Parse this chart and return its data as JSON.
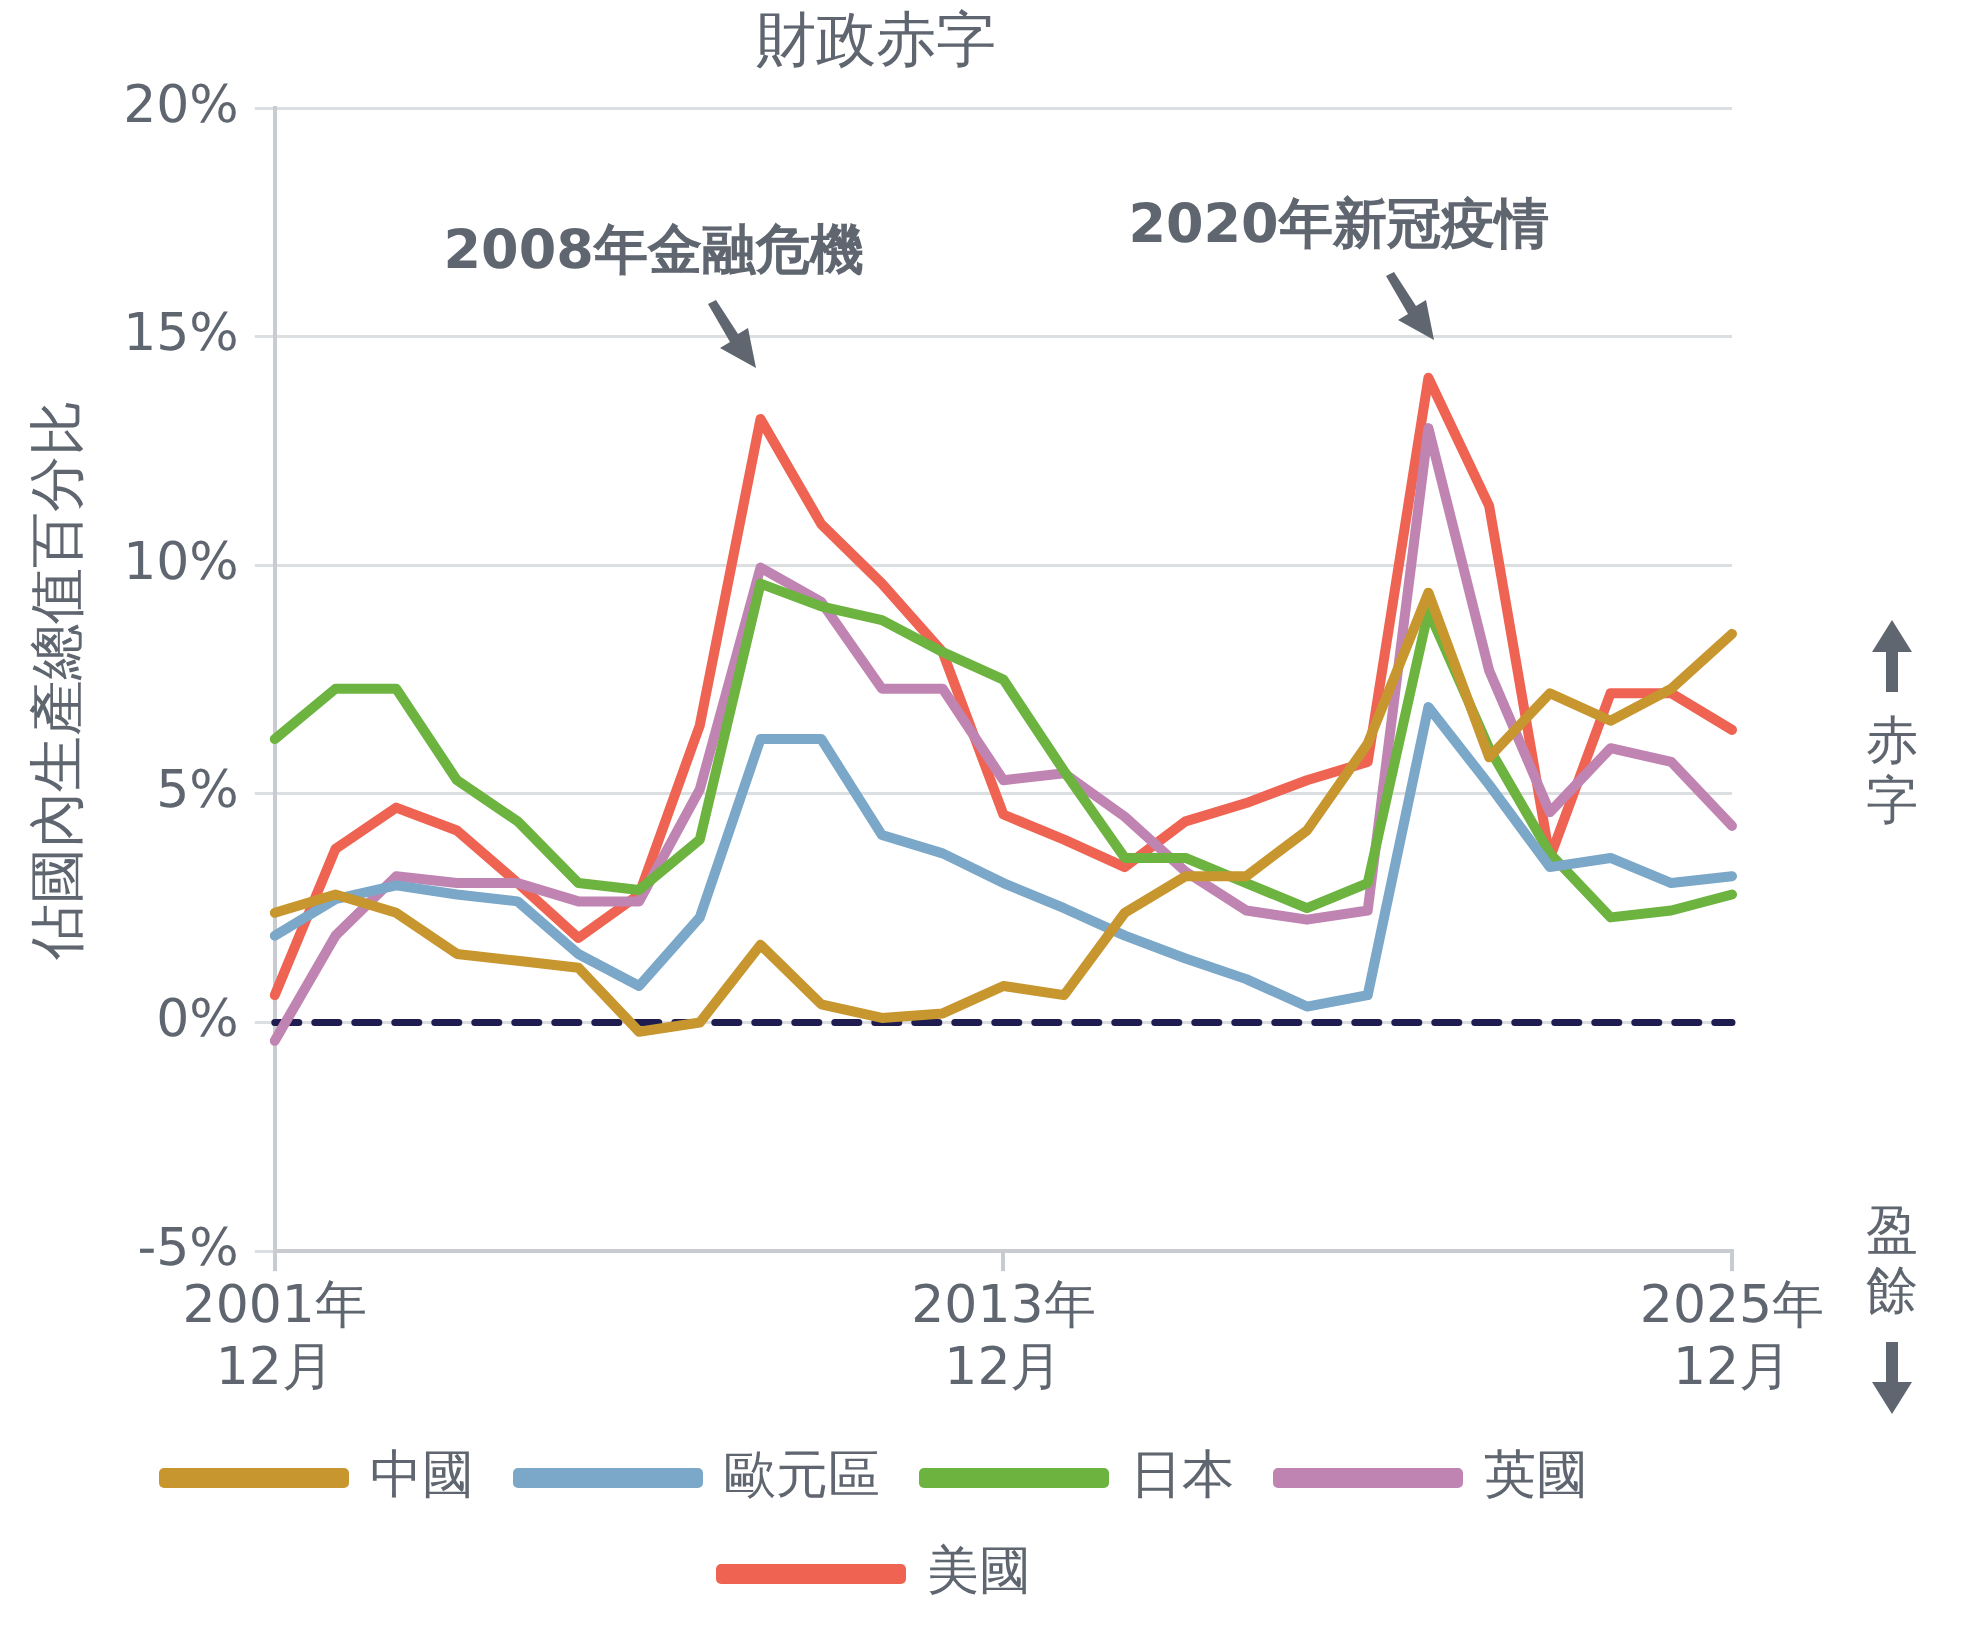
{
  "chart_data": {
    "type": "line",
    "title": "財政赤字",
    "ylabel": "佔國內生產總值百分比",
    "categories": [
      "2001年\n12月",
      null,
      null,
      null,
      null,
      null,
      null,
      null,
      null,
      null,
      null,
      null,
      "2013年\n12月",
      null,
      null,
      null,
      null,
      null,
      null,
      null,
      null,
      null,
      null,
      null,
      "2025年\n12月"
    ],
    "series": [
      {
        "name": "中國",
        "color": "#c8962e",
        "values": [
          2.4,
          2.8,
          2.4,
          1.5,
          1.35,
          1.2,
          -0.2,
          0.0,
          1.7,
          0.4,
          0.1,
          0.2,
          0.8,
          0.6,
          2.4,
          3.2,
          3.2,
          4.2,
          6.1,
          9.4,
          5.8,
          7.2,
          6.6,
          7.3,
          8.5
        ]
      },
      {
        "name": "歐元區",
        "color": "#7ba7c8",
        "values": [
          1.9,
          2.7,
          3.0,
          2.8,
          2.65,
          1.5,
          0.8,
          2.3,
          6.2,
          6.2,
          4.1,
          3.7,
          3.05,
          2.5,
          1.9,
          1.4,
          0.95,
          0.35,
          0.6,
          6.9,
          5.2,
          3.4,
          3.6,
          3.05,
          3.2
        ]
      },
      {
        "name": "日本",
        "color": "#6db33f",
        "values": [
          6.2,
          7.3,
          7.3,
          5.3,
          4.4,
          3.05,
          2.9,
          4.0,
          9.6,
          9.1,
          8.8,
          8.1,
          7.5,
          5.5,
          3.6,
          3.6,
          3.05,
          2.5,
          3.05,
          9.0,
          6.0,
          3.7,
          2.3,
          2.45,
          2.8
        ]
      },
      {
        "name": "英國",
        "color": "#c084b3",
        "values": [
          -0.4,
          1.9,
          3.2,
          3.05,
          3.05,
          2.65,
          2.65,
          5.1,
          9.95,
          9.2,
          7.3,
          7.3,
          5.3,
          5.45,
          4.5,
          3.3,
          2.45,
          2.25,
          2.45,
          13.0,
          7.7,
          4.6,
          6.0,
          5.7,
          4.3
        ]
      },
      {
        "name": "美國",
        "color": "#ee6352",
        "values": [
          0.6,
          3.8,
          4.7,
          4.2,
          3.05,
          1.85,
          2.8,
          6.5,
          13.2,
          10.9,
          9.6,
          8.1,
          4.55,
          4.0,
          3.4,
          4.4,
          4.8,
          5.3,
          5.7,
          14.1,
          11.3,
          3.6,
          7.2,
          7.2,
          6.4
        ]
      }
    ],
    "ylim": [
      -5,
      20
    ],
    "yticks": [
      {
        "value": -5,
        "label": "-5%"
      },
      {
        "value": 0,
        "label": "0%"
      },
      {
        "value": 5,
        "label": "5%"
      },
      {
        "value": 10,
        "label": "10%"
      },
      {
        "value": 15,
        "label": "15%"
      },
      {
        "value": 20,
        "label": "20%"
      }
    ],
    "grid": "y",
    "legend": "bottom",
    "marker": "none",
    "line_style": "solid",
    "ref_lines": [
      {
        "axis": "y",
        "value": 0,
        "color": "#1f1d4f",
        "line_style": "dashed"
      }
    ],
    "annotations": [
      "2008年金融危機",
      "2020年新冠疫情",
      "赤字",
      "盈餘"
    ]
  }
}
